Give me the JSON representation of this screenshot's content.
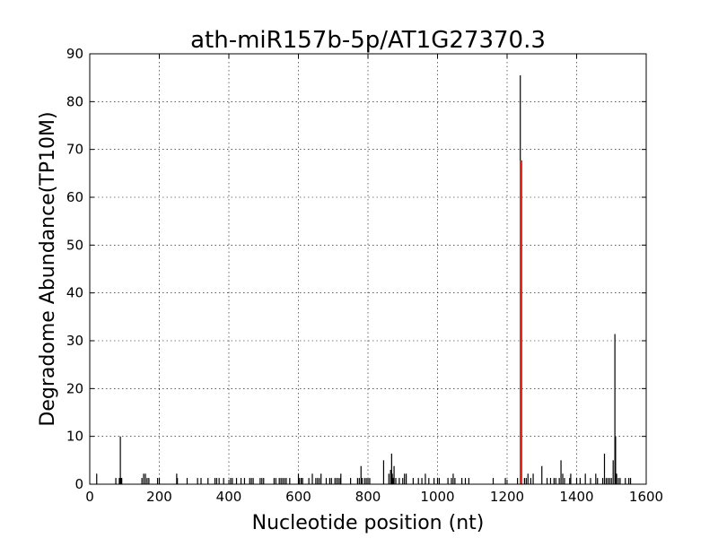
{
  "chart_data": {
    "type": "bar",
    "title": "ath-miR157b-5p/AT1G27370.3",
    "xlabel": "Nucleotide position (nt)",
    "ylabel": "Degradome Abundance(TP10M)",
    "xlim": [
      0,
      1600
    ],
    "ylim": [
      0,
      90
    ],
    "xticks": [
      0,
      200,
      400,
      600,
      800,
      1000,
      1200,
      1400,
      1600
    ],
    "yticks": [
      0,
      10,
      20,
      30,
      40,
      50,
      60,
      70,
      80,
      90
    ],
    "grid": true,
    "series": [
      {
        "color": "#000000",
        "x": [
          20,
          75,
          85,
          88,
          90,
          92,
          150,
          155,
          160,
          165,
          170,
          195,
          200,
          250,
          252,
          280,
          310,
          320,
          340,
          360,
          365,
          372,
          385,
          405,
          410,
          422,
          435,
          445,
          460,
          465,
          470,
          490,
          495,
          500,
          530,
          535,
          545,
          550,
          555,
          560,
          565,
          575,
          600,
          603,
          608,
          612,
          630,
          640,
          650,
          655,
          660,
          665,
          680,
          690,
          695,
          705,
          710,
          715,
          720,
          722,
          750,
          770,
          775,
          780,
          783,
          790,
          795,
          800,
          805,
          845,
          860,
          865,
          868,
          870,
          872,
          875,
          880,
          890,
          900,
          905,
          910,
          930,
          945,
          955,
          965,
          975,
          990,
          1000,
          1005,
          1030,
          1040,
          1045,
          1050,
          1070,
          1080,
          1090,
          1160,
          1195,
          1230,
          1238,
          1242,
          1250,
          1255,
          1260,
          1268,
          1275,
          1300,
          1315,
          1325,
          1335,
          1340,
          1350,
          1355,
          1360,
          1365,
          1380,
          1383,
          1400,
          1410,
          1425,
          1440,
          1455,
          1460,
          1475,
          1480,
          1485,
          1490,
          1495,
          1500,
          1505,
          1510,
          1512,
          1515,
          1520,
          1525,
          1540,
          1550,
          1555
        ],
        "values": [
          2.2,
          1.3,
          1.3,
          10.0,
          1.3,
          1.3,
          1.3,
          2.2,
          2.2,
          1.3,
          1.3,
          1.3,
          1.3,
          2.2,
          1.3,
          1.3,
          1.3,
          1.3,
          1.3,
          1.3,
          1.3,
          1.3,
          1.3,
          1.3,
          1.3,
          1.3,
          1.3,
          1.3,
          1.3,
          1.3,
          1.3,
          1.3,
          1.3,
          1.3,
          1.3,
          1.3,
          1.3,
          1.3,
          1.3,
          1.3,
          1.3,
          1.3,
          2.2,
          1.3,
          1.3,
          1.3,
          1.3,
          2.2,
          1.3,
          1.3,
          1.3,
          2.2,
          1.3,
          1.3,
          1.3,
          1.3,
          1.3,
          1.3,
          1.3,
          2.2,
          1.3,
          1.3,
          1.3,
          3.8,
          1.3,
          1.3,
          1.3,
          1.3,
          1.3,
          5.0,
          2.2,
          3.0,
          6.4,
          2.2,
          1.3,
          3.8,
          1.3,
          1.3,
          1.3,
          2.2,
          2.2,
          1.3,
          1.3,
          1.3,
          2.2,
          1.3,
          1.3,
          1.3,
          1.3,
          1.3,
          1.3,
          2.2,
          1.3,
          1.3,
          1.3,
          1.3,
          1.3,
          1.3,
          1.3,
          85.5,
          67.7,
          1.3,
          1.3,
          2.2,
          1.3,
          2.2,
          3.8,
          1.3,
          1.3,
          1.3,
          1.3,
          1.3,
          5.0,
          2.2,
          1.3,
          1.3,
          2.2,
          1.3,
          1.3,
          2.2,
          1.3,
          2.2,
          1.3,
          1.3,
          6.4,
          1.3,
          1.3,
          1.3,
          1.3,
          5.0,
          31.4,
          10.0,
          2.2,
          1.3,
          1.3,
          1.3,
          1.3,
          1.3
        ]
      },
      {
        "color": "#e8291b",
        "x": [
          1240
        ],
        "values": [
          67.7
        ]
      }
    ]
  }
}
